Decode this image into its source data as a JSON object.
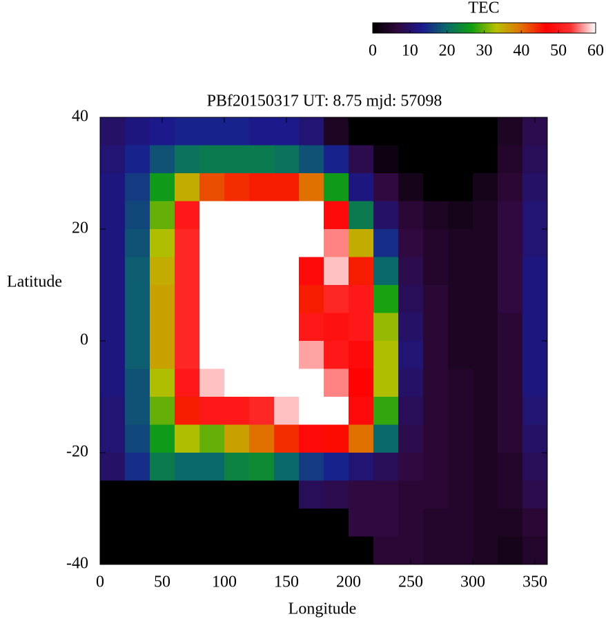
{
  "chart_data": {
    "type": "heatmap",
    "title": "PBf20150317  UT: 8.75  mjd: 57098",
    "xlabel": "Longitude",
    "ylabel": "Latitude",
    "x": [
      10,
      30,
      50,
      70,
      90,
      110,
      130,
      150,
      170,
      190,
      210,
      230,
      250,
      270,
      290,
      310,
      330,
      350
    ],
    "y": [
      37.5,
      32.5,
      27.5,
      22.5,
      17.5,
      12.5,
      7.5,
      2.5,
      -2.5,
      -7.5,
      -12.5,
      -17.5,
      -22.5,
      -27.5,
      -32.5,
      -37.5
    ],
    "z": [
      [
        10,
        12,
        13,
        14,
        14,
        14,
        13,
        13,
        11,
        4,
        0,
        0,
        0,
        0,
        0,
        0,
        4,
        8
      ],
      [
        11,
        14,
        18,
        21,
        22,
        22,
        22,
        21,
        18,
        14,
        8,
        2,
        0,
        0,
        0,
        0,
        5,
        9
      ],
      [
        12,
        16,
        26,
        35,
        42,
        44,
        45,
        45,
        40,
        26,
        12,
        7,
        3,
        0,
        0,
        3,
        6,
        10
      ],
      [
        12,
        17,
        30,
        50,
        60,
        60,
        60,
        60,
        60,
        48,
        22,
        10,
        6,
        4,
        3,
        4,
        7,
        11
      ],
      [
        12,
        18,
        33,
        52,
        60,
        60,
        60,
        60,
        60,
        56,
        35,
        15,
        7,
        5,
        4,
        4,
        7,
        11
      ],
      [
        12,
        19,
        35,
        52,
        60,
        60,
        60,
        60,
        48,
        58,
        45,
        20,
        8,
        5,
        4,
        4,
        7,
        12
      ],
      [
        12,
        19,
        36,
        52,
        60,
        60,
        60,
        60,
        45,
        52,
        50,
        27,
        9,
        6,
        4,
        4,
        7,
        12
      ],
      [
        12,
        19,
        36,
        52,
        60,
        60,
        60,
        60,
        50,
        49,
        50,
        32,
        10,
        6,
        4,
        4,
        6,
        12
      ],
      [
        12,
        19,
        36,
        52,
        60,
        60,
        60,
        60,
        57,
        50,
        48,
        33,
        11,
        6,
        4,
        4,
        6,
        12
      ],
      [
        12,
        18,
        33,
        50,
        58,
        60,
        60,
        60,
        60,
        56,
        47,
        33,
        10,
        6,
        5,
        4,
        6,
        12
      ],
      [
        11,
        18,
        30,
        45,
        50,
        50,
        52,
        58,
        60,
        60,
        48,
        28,
        9,
        6,
        5,
        4,
        6,
        11
      ],
      [
        11,
        17,
        26,
        33,
        30,
        36,
        40,
        44,
        48,
        46,
        40,
        20,
        8,
        6,
        5,
        4,
        6,
        10
      ],
      [
        10,
        15,
        22,
        20,
        20,
        23,
        24,
        20,
        16,
        14,
        11,
        9,
        7,
        6,
        5,
        4,
        5,
        9
      ],
      [
        0,
        0,
        0,
        0,
        0,
        0,
        0,
        0,
        9,
        8,
        7,
        7,
        6,
        6,
        5,
        4,
        5,
        8
      ],
      [
        0,
        0,
        0,
        0,
        0,
        0,
        0,
        0,
        0,
        0,
        7,
        7,
        6,
        5,
        5,
        4,
        4,
        6
      ],
      [
        0,
        0,
        0,
        0,
        0,
        0,
        0,
        0,
        0,
        0,
        0,
        6,
        6,
        5,
        5,
        4,
        3,
        5
      ]
    ],
    "xlim": [
      0,
      360
    ],
    "ylim": [
      -40,
      40
    ],
    "xticks": [
      0,
      50,
      100,
      150,
      200,
      250,
      300,
      350
    ],
    "yticks": [
      -40,
      -20,
      0,
      20,
      40
    ],
    "colorbar": {
      "label": "TEC",
      "lim": [
        0,
        60
      ],
      "ticks": [
        0,
        10,
        20,
        30,
        40,
        50,
        60
      ],
      "colors": [
        "#000000",
        "#30083c",
        "#1a1a90",
        "#0a6a6a",
        "#10a010",
        "#b8c000",
        "#e07000",
        "#ff0000",
        "#ff3030",
        "#ffffff"
      ]
    }
  }
}
